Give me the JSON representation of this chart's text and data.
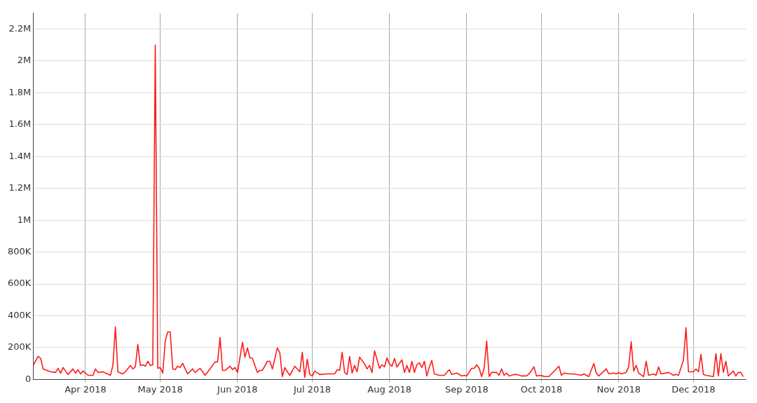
{
  "chart_data": {
    "type": "line",
    "x": [
      "2018-03-11",
      "2018-03-13",
      "2018-03-14",
      "2018-03-15",
      "2018-03-18",
      "2018-03-20",
      "2018-03-21",
      "2018-03-22",
      "2018-03-23",
      "2018-03-25",
      "2018-03-27",
      "2018-03-28",
      "2018-03-29",
      "2018-03-30",
      "2018-03-31",
      "2018-04-02",
      "2018-04-04",
      "2018-04-05",
      "2018-04-06",
      "2018-04-08",
      "2018-04-11",
      "2018-04-12",
      "2018-04-13",
      "2018-04-14",
      "2018-04-16",
      "2018-04-17",
      "2018-04-19",
      "2018-04-20",
      "2018-04-21",
      "2018-04-22",
      "2018-04-23",
      "2018-04-24",
      "2018-04-25",
      "2018-04-26",
      "2018-04-27",
      "2018-04-28",
      "2018-04-29",
      "2018-04-30",
      "2018-05-01",
      "2018-05-02",
      "2018-05-03",
      "2018-05-04",
      "2018-05-05",
      "2018-05-06",
      "2018-05-07",
      "2018-05-08",
      "2018-05-09",
      "2018-05-10",
      "2018-05-11",
      "2018-05-12",
      "2018-05-14",
      "2018-05-15",
      "2018-05-17",
      "2018-05-18",
      "2018-05-19",
      "2018-05-22",
      "2018-05-23",
      "2018-05-24",
      "2018-05-25",
      "2018-05-26",
      "2018-05-27",
      "2018-05-29",
      "2018-05-30",
      "2018-05-31",
      "2018-06-01",
      "2018-06-03",
      "2018-06-04",
      "2018-06-05",
      "2018-06-06",
      "2018-06-07",
      "2018-06-09",
      "2018-06-10",
      "2018-06-11",
      "2018-06-13",
      "2018-06-14",
      "2018-06-15",
      "2018-06-17",
      "2018-06-18",
      "2018-06-19",
      "2018-06-20",
      "2018-06-21",
      "2018-06-22",
      "2018-06-24",
      "2018-06-26",
      "2018-06-27",
      "2018-06-28",
      "2018-06-29",
      "2018-06-30",
      "2018-07-01",
      "2018-07-02",
      "2018-07-04",
      "2018-07-07",
      "2018-07-10",
      "2018-07-11",
      "2018-07-12",
      "2018-07-13",
      "2018-07-14",
      "2018-07-15",
      "2018-07-16",
      "2018-07-17",
      "2018-07-18",
      "2018-07-19",
      "2018-07-20",
      "2018-07-22",
      "2018-07-23",
      "2018-07-24",
      "2018-07-25",
      "2018-07-26",
      "2018-07-28",
      "2018-07-29",
      "2018-07-30",
      "2018-07-31",
      "2018-08-01",
      "2018-08-02",
      "2018-08-03",
      "2018-08-04",
      "2018-08-06",
      "2018-08-07",
      "2018-08-08",
      "2018-08-09",
      "2018-08-10",
      "2018-08-11",
      "2018-08-12",
      "2018-08-13",
      "2018-08-14",
      "2018-08-15",
      "2018-08-16",
      "2018-08-17",
      "2018-08-18",
      "2018-08-19",
      "2018-08-21",
      "2018-08-23",
      "2018-08-25",
      "2018-08-26",
      "2018-08-28",
      "2018-08-30",
      "2018-08-31",
      "2018-09-01",
      "2018-09-03",
      "2018-09-04",
      "2018-09-05",
      "2018-09-06",
      "2018-09-07",
      "2018-09-08",
      "2018-09-09",
      "2018-09-10",
      "2018-09-11",
      "2018-09-13",
      "2018-09-14",
      "2018-09-15",
      "2018-09-16",
      "2018-09-17",
      "2018-09-18",
      "2018-09-20",
      "2018-09-21",
      "2018-09-23",
      "2018-09-25",
      "2018-09-26",
      "2018-09-28",
      "2018-09-29",
      "2018-10-01",
      "2018-10-02",
      "2018-10-04",
      "2018-10-08",
      "2018-10-09",
      "2018-10-10",
      "2018-10-12",
      "2018-10-14",
      "2018-10-17",
      "2018-10-18",
      "2018-10-20",
      "2018-10-22",
      "2018-10-23",
      "2018-10-24",
      "2018-10-27",
      "2018-10-28",
      "2018-10-30",
      "2018-10-31",
      "2018-11-01",
      "2018-11-02",
      "2018-11-04",
      "2018-11-05",
      "2018-11-06",
      "2018-11-07",
      "2018-11-08",
      "2018-11-09",
      "2018-11-11",
      "2018-11-12",
      "2018-11-13",
      "2018-11-15",
      "2018-11-16",
      "2018-11-17",
      "2018-11-18",
      "2018-11-21",
      "2018-11-23",
      "2018-11-24",
      "2018-11-25",
      "2018-11-27",
      "2018-11-28",
      "2018-11-29",
      "2018-12-01",
      "2018-12-02",
      "2018-12-03",
      "2018-12-04",
      "2018-12-05",
      "2018-12-06",
      "2018-12-09",
      "2018-12-10",
      "2018-12-11",
      "2018-12-12",
      "2018-12-13",
      "2018-12-14",
      "2018-12-15",
      "2018-12-17",
      "2018-12-18",
      "2018-12-19",
      "2018-12-20",
      "2018-12-21"
    ],
    "series": [
      {
        "color": "#ff1a1a",
        "values": [
          88000,
          145000,
          132000,
          66000,
          48000,
          44000,
          70000,
          40000,
          75000,
          31000,
          66000,
          40000,
          61000,
          35000,
          53000,
          26000,
          26000,
          66000,
          44000,
          48000,
          26000,
          88000,
          329000,
          48000,
          35000,
          48000,
          88000,
          66000,
          79000,
          220000,
          88000,
          92000,
          83000,
          114000,
          88000,
          92000,
          2100000,
          70000,
          75000,
          40000,
          241000,
          299000,
          299000,
          66000,
          62000,
          83000,
          75000,
          101000,
          66000,
          35000,
          66000,
          44000,
          70000,
          48000,
          26000,
          88000,
          110000,
          110000,
          263000,
          57000,
          57000,
          83000,
          62000,
          75000,
          44000,
          233000,
          140000,
          198000,
          136000,
          132000,
          44000,
          57000,
          57000,
          114000,
          114000,
          66000,
          198000,
          167000,
          18000,
          75000,
          48000,
          26000,
          83000,
          48000,
          171000,
          13000,
          127000,
          31000,
          22000,
          53000,
          31000,
          35000,
          35000,
          61000,
          57000,
          171000,
          44000,
          31000,
          145000,
          40000,
          88000,
          48000,
          140000,
          97000,
          66000,
          88000,
          44000,
          180000,
          70000,
          92000,
          79000,
          136000,
          97000,
          83000,
          132000,
          79000,
          123000,
          44000,
          88000,
          44000,
          114000,
          44000,
          92000,
          105000,
          75000,
          114000,
          22000,
          79000,
          119000,
          35000,
          26000,
          26000,
          61000,
          31000,
          40000,
          22000,
          26000,
          22000,
          70000,
          70000,
          92000,
          70000,
          18000,
          70000,
          241000,
          18000,
          44000,
          44000,
          26000,
          66000,
          26000,
          40000,
          22000,
          31000,
          31000,
          22000,
          22000,
          35000,
          79000,
          22000,
          26000,
          18000,
          18000,
          83000,
          26000,
          40000,
          35000,
          35000,
          26000,
          35000,
          18000,
          101000,
          40000,
          22000,
          66000,
          35000,
          40000,
          35000,
          44000,
          35000,
          44000,
          79000,
          237000,
          53000,
          88000,
          40000,
          18000,
          114000,
          26000,
          35000,
          26000,
          79000,
          35000,
          44000,
          26000,
          31000,
          26000,
          123000,
          325000,
          48000,
          48000,
          66000,
          48000,
          158000,
          31000,
          26000,
          18000,
          162000,
          22000,
          162000,
          44000,
          114000,
          22000,
          53000,
          22000,
          44000,
          44000,
          18000
        ]
      }
    ],
    "xlim": [
      "2018-03-11",
      "2018-12-22"
    ],
    "xticks": [
      {
        "value": "2018-04-01",
        "label": "Apr 2018"
      },
      {
        "value": "2018-05-01",
        "label": "May 2018"
      },
      {
        "value": "2018-06-01",
        "label": "Jun 2018"
      },
      {
        "value": "2018-07-01",
        "label": "Jul 2018"
      },
      {
        "value": "2018-08-01",
        "label": "Aug 2018"
      },
      {
        "value": "2018-09-01",
        "label": "Sep 2018"
      },
      {
        "value": "2018-10-01",
        "label": "Oct 2018"
      },
      {
        "value": "2018-11-01",
        "label": "Nov 2018"
      },
      {
        "value": "2018-12-01",
        "label": "Dec 2018"
      }
    ],
    "ylim": [
      0,
      2300000
    ],
    "yticks": [
      0,
      {
        "value": 200000,
        "label": "200K"
      },
      {
        "value": 400000,
        "label": "400K"
      },
      {
        "value": 600000,
        "label": "600K"
      },
      {
        "value": 800000,
        "label": "800K"
      },
      {
        "value": 1000000,
        "label": "1M"
      },
      {
        "value": 1200000,
        "label": "1.2M"
      },
      {
        "value": 1400000,
        "label": "1.4M"
      },
      {
        "value": 1600000,
        "label": "1.6M"
      },
      {
        "value": 1800000,
        "label": "1.8M"
      },
      {
        "value": 2000000,
        "label": "2M"
      },
      {
        "value": 2200000,
        "label": "2.2M"
      }
    ],
    "grid": true,
    "legend": false,
    "marker": "none",
    "line_style": "solid"
  }
}
